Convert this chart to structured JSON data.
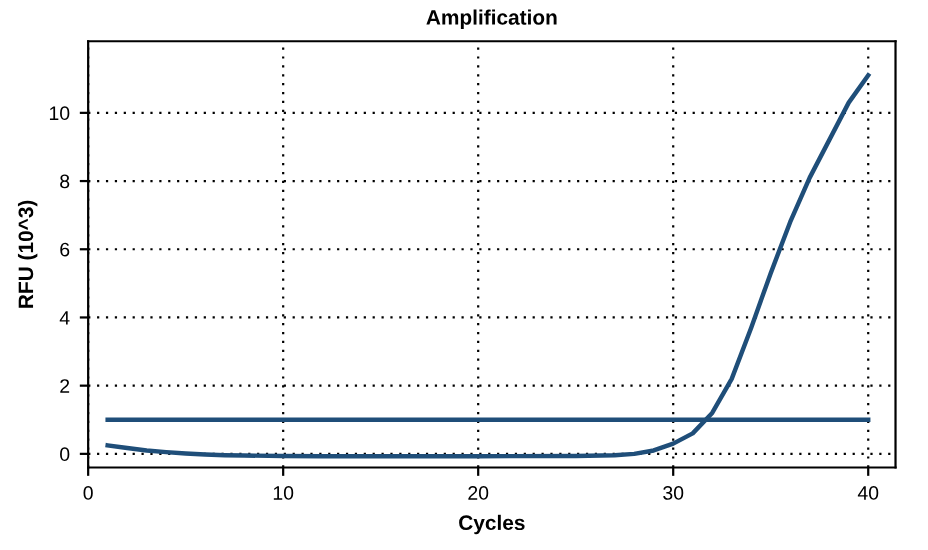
{
  "chart_data": {
    "type": "line",
    "title": "Amplification",
    "xlabel": "Cycles",
    "ylabel": "RFU (10^3)",
    "xlim": [
      0,
      41.4
    ],
    "ylim": [
      -0.4,
      12.1
    ],
    "xticks": [
      0,
      10,
      20,
      30,
      40
    ],
    "yticks": [
      0,
      2,
      4,
      6,
      8,
      10
    ],
    "grid": true,
    "marker": "none",
    "line_style": "solid",
    "series": [
      {
        "color": "#1f4e79",
        "x": [
          1,
          2,
          3,
          4,
          5,
          6,
          7,
          8,
          10,
          12,
          15,
          20,
          25,
          27,
          28,
          29,
          30,
          31,
          32,
          33,
          34,
          35,
          36,
          37,
          38,
          39,
          40
        ],
        "values": [
          0.25,
          0.17,
          0.1,
          0.05,
          0.01,
          -0.02,
          -0.04,
          -0.05,
          -0.06,
          -0.07,
          -0.07,
          -0.07,
          -0.06,
          -0.04,
          0.0,
          0.1,
          0.3,
          0.6,
          1.2,
          2.2,
          3.7,
          5.3,
          6.8,
          8.1,
          9.2,
          10.3,
          11.1
        ]
      },
      {
        "color": "#1f4e79",
        "x": [
          1,
          40
        ],
        "values": [
          1.0,
          1.0
        ]
      }
    ]
  }
}
